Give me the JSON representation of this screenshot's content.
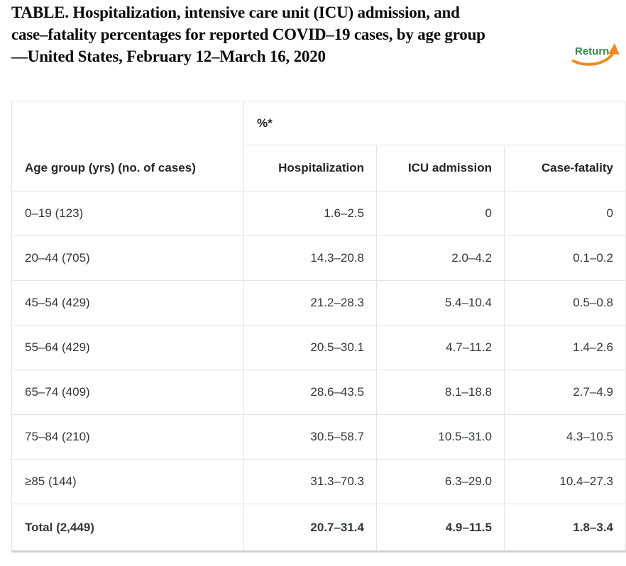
{
  "header": {
    "title_lines": [
      "TABLE. Hospitalization, intensive care unit (ICU) admission, and",
      "case–fatality percentages for reported COVID–19 cases, by age group",
      "—United States, February 12–March 16, 2020"
    ],
    "return_label": "Return"
  },
  "colors": {
    "accent_green": "#368a4e",
    "accent_orange": "#ef8b22",
    "table_border": "#e3e4e6",
    "table_bottom_border": "#ced2d6",
    "body_text": "#33383d",
    "title_text": "#0b0b0b"
  },
  "table": {
    "group_header": "%*",
    "columns": [
      "Age group (yrs) (no. of cases)",
      "Hospitalization",
      "ICU admission",
      "Case-fatality"
    ],
    "rows": [
      {
        "label": "0–19 (123)",
        "values": [
          "1.6–2.5",
          "0",
          "0"
        ],
        "bold": false
      },
      {
        "label": "20–44 (705)",
        "values": [
          "14.3–20.8",
          "2.0–4.2",
          "0.1–0.2"
        ],
        "bold": false
      },
      {
        "label": "45–54 (429)",
        "values": [
          "21.2–28.3",
          "5.4–10.4",
          "0.5–0.8"
        ],
        "bold": false
      },
      {
        "label": "55–64 (429)",
        "values": [
          "20.5–30.1",
          "4.7–11.2",
          "1.4–2.6"
        ],
        "bold": false
      },
      {
        "label": "65–74 (409)",
        "values": [
          "28.6–43.5",
          "8.1–18.8",
          "2.7–4.9"
        ],
        "bold": false
      },
      {
        "label": "75–84 (210)",
        "values": [
          "30.5–58.7",
          "10.5–31.0",
          "4.3–10.5"
        ],
        "bold": false
      },
      {
        "label": "≥85 (144)",
        "values": [
          "31.3–70.3",
          "6.3–29.0",
          "10.4–27.3"
        ],
        "bold": false
      },
      {
        "label": "Total (2,449)",
        "values": [
          "20.7–31.4",
          "4.9–11.5",
          "1.8–3.4"
        ],
        "bold": true
      }
    ]
  }
}
